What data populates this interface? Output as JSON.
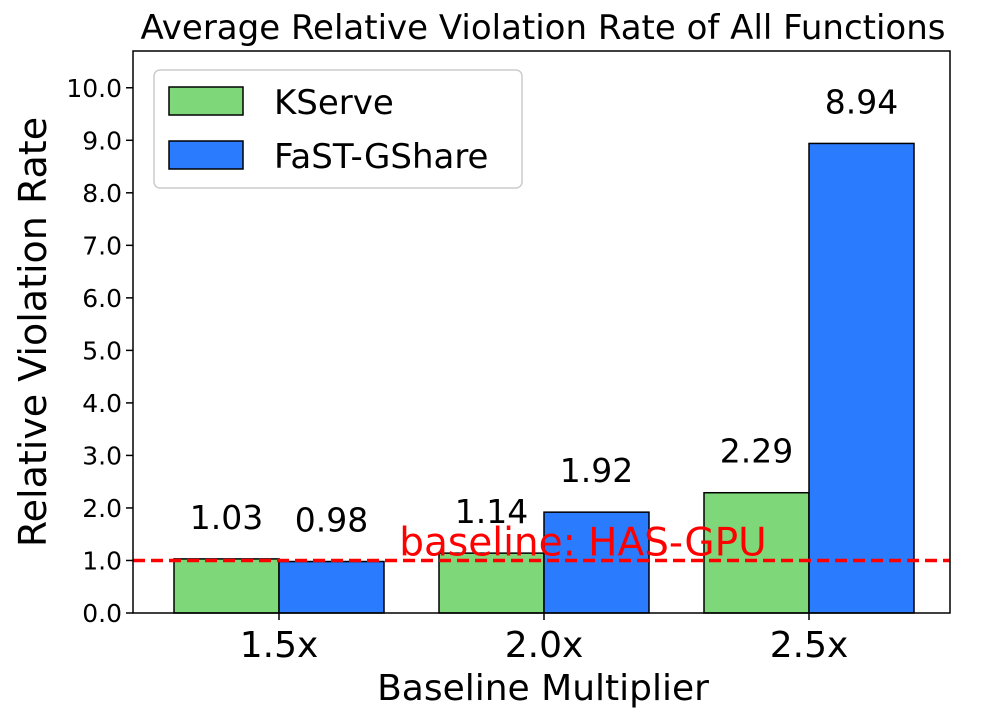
{
  "chart_data": {
    "type": "bar",
    "title": "Average Relative Violation Rate of All Functions",
    "xlabel": "Baseline Multiplier",
    "ylabel": "Relative Violation Rate",
    "categories": [
      "1.5x",
      "2.0x",
      "2.5x"
    ],
    "series": [
      {
        "name": "KServe",
        "color": "#7ed87a",
        "values": [
          1.03,
          1.14,
          2.29
        ],
        "labels": [
          "1.03",
          "1.14",
          "2.29"
        ]
      },
      {
        "name": "FaST-GShare",
        "color": "#2b7bff",
        "values": [
          0.98,
          1.92,
          8.94
        ],
        "labels": [
          "0.98",
          "1.92",
          "8.94"
        ]
      }
    ],
    "ylim": [
      0,
      10.7
    ],
    "yticks": [
      0,
      1,
      2,
      3,
      4,
      5,
      6,
      7,
      8,
      9,
      10
    ],
    "ytick_labels": [
      "0.0",
      "1.0",
      "2.0",
      "3.0",
      "4.0",
      "5.0",
      "6.0",
      "7.0",
      "8.0",
      "9.0",
      "10.0"
    ],
    "baseline": {
      "value": 1.0,
      "label": "baseline: HAS-GPU",
      "color": "#ff0000"
    },
    "legend_position": "top-left",
    "grid": false
  }
}
